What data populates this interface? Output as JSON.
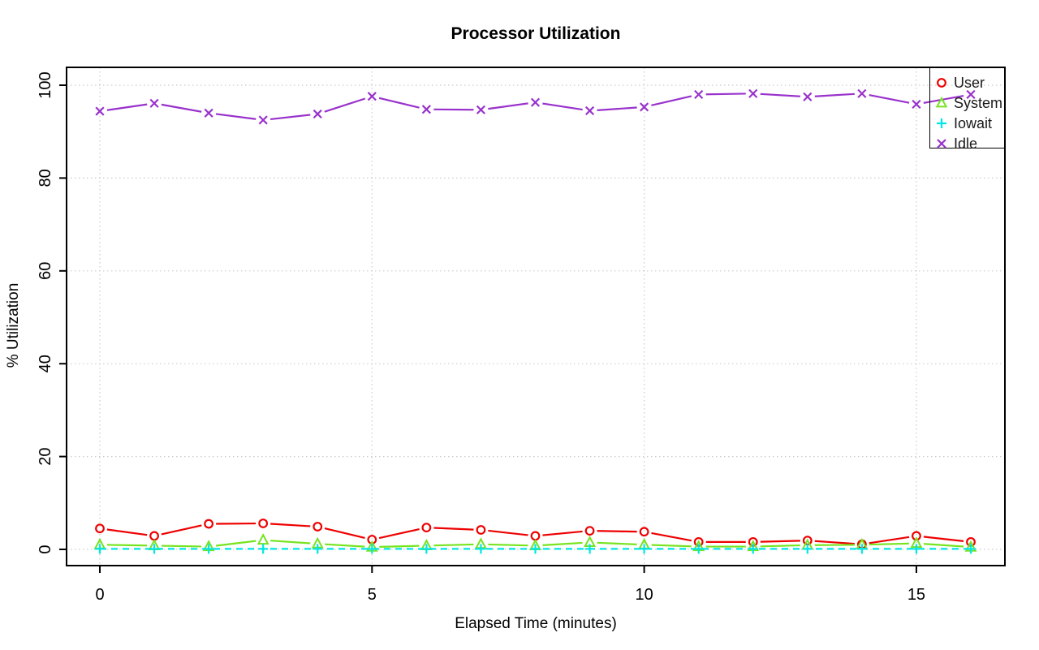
{
  "chart_data": {
    "type": "line",
    "title": "Processor Utilization",
    "xlabel": "Elapsed Time (minutes)",
    "ylabel": "% Utilization",
    "x": [
      0,
      1,
      2,
      3,
      4,
      5,
      6,
      7,
      8,
      9,
      10,
      11,
      12,
      13,
      14,
      15,
      16
    ],
    "series": [
      {
        "name": "User",
        "color": "#EE0000",
        "marker": "circle",
        "line": "solid",
        "values": [
          4.5,
          2.9,
          5.5,
          5.6,
          4.9,
          2.1,
          4.7,
          4.2,
          2.9,
          4.0,
          3.8,
          1.6,
          1.6,
          1.9,
          1.1,
          2.9,
          1.6
        ]
      },
      {
        "name": "System",
        "color": "#76E41F",
        "marker": "triangle",
        "line": "solid",
        "values": [
          1.0,
          0.8,
          0.6,
          2.0,
          1.2,
          0.5,
          0.8,
          1.1,
          0.8,
          1.5,
          1.0,
          0.6,
          0.6,
          0.9,
          1.0,
          1.3,
          0.5
        ]
      },
      {
        "name": "Iowait",
        "color": "#00E6E6",
        "marker": "plus",
        "line": "dashed",
        "values": [
          0.1,
          0.1,
          0.1,
          0.1,
          0.1,
          0.1,
          0.1,
          0.1,
          0.1,
          0.1,
          0.1,
          0.1,
          0.1,
          0.1,
          0.1,
          0.1,
          0.1
        ]
      },
      {
        "name": "Idle",
        "color": "#9932CC",
        "marker": "x",
        "line": "solid",
        "values": [
          94.4,
          96.1,
          94.0,
          92.5,
          93.8,
          97.6,
          94.8,
          94.7,
          96.3,
          94.5,
          95.3,
          98.0,
          98.2,
          97.5,
          98.2,
          95.9,
          98.0
        ]
      }
    ],
    "xlim": [
      0,
      16
    ],
    "ylim": [
      0,
      100
    ],
    "x_ticks": [
      0,
      5,
      10,
      15
    ],
    "y_ticks": [
      0,
      20,
      40,
      60,
      80,
      100
    ],
    "grid": true,
    "grid_style": "dotted",
    "grid_color": "#CBCBCB",
    "legend_position": "topright"
  }
}
